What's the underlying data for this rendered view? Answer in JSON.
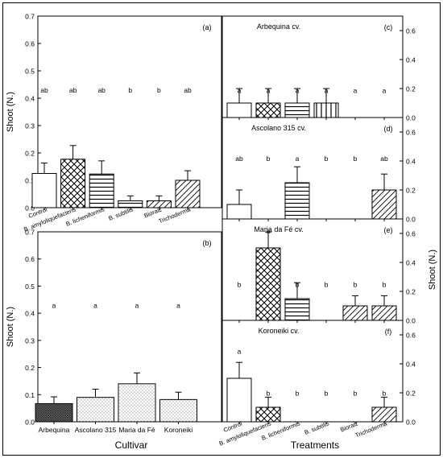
{
  "chart_data": [
    {
      "panel": "(a)",
      "type": "bar",
      "ylabel": "Shoot (N.)",
      "ylim": [
        0,
        0.7
      ],
      "yticks": [
        "0.0",
        "0.1",
        "0.2",
        "0.3",
        "0.4",
        "0.5",
        "0.6",
        "0.7"
      ],
      "categories": [
        "Control",
        "B. amyloliquefaciens",
        "B. licheniformis",
        "B. subtilis",
        "Bioraiz",
        "Trichoderma"
      ],
      "values": [
        0.125,
        0.177,
        0.123,
        0.025,
        0.025,
        0.1
      ],
      "errors": [
        0.038,
        0.05,
        0.048,
        0.018,
        0.018,
        0.035
      ],
      "letters": [
        "ab",
        "ab",
        "ab",
        "b",
        "b",
        "ab"
      ],
      "patterns": [
        "none",
        "cross",
        "hlines",
        "hlines",
        "diag",
        "diag"
      ]
    },
    {
      "panel": "(b)",
      "type": "bar",
      "ylabel": "Shoot (N.)",
      "xlabel": "Cultivar",
      "ylim": [
        0,
        0.7
      ],
      "yticks": [
        "0.0",
        "0.1",
        "0.2",
        "0.3",
        "0.4",
        "0.5",
        "0.6",
        "0.7"
      ],
      "categories": [
        "Arbequina",
        "Ascolano 315",
        "Maria da Fé",
        "Koroneiki"
      ],
      "values": [
        0.067,
        0.09,
        0.14,
        0.082
      ],
      "errors": [
        0.025,
        0.03,
        0.04,
        0.027
      ],
      "letters": [
        "a",
        "a",
        "a",
        "a"
      ],
      "patterns": [
        "dense",
        "dots",
        "dots",
        "dots"
      ]
    },
    {
      "panel": "(c)",
      "title": "Arbequina cv.",
      "type": "bar",
      "ylim": [
        0,
        0.7
      ],
      "yticks": [
        "0.0",
        "0.2",
        "0.4",
        "0.6"
      ],
      "categories": [
        "Control",
        "B. amyloliquefaciens",
        "B. licheniformis",
        "B. subtilis",
        "Bioraiz",
        "Trichoderma"
      ],
      "values": [
        0.1,
        0.1,
        0.1,
        0.1,
        0,
        0
      ],
      "errors": [
        0.1,
        0.1,
        0.1,
        0.1,
        0,
        0
      ],
      "letters": [
        "a",
        "a",
        "a",
        "a",
        "a",
        "a"
      ],
      "patterns": [
        "none",
        "cross",
        "hlines",
        "vlines",
        "diag",
        "diag"
      ]
    },
    {
      "panel": "(d)",
      "title": "Ascolano 315 cv.",
      "type": "bar",
      "ylim": [
        0,
        0.7
      ],
      "yticks": [
        "0.0",
        "0.2",
        "0.4",
        "0.6"
      ],
      "categories": [
        "Control",
        "B. amyloliquefaciens",
        "B. licheniformis",
        "B. subtilis",
        "Bioraiz",
        "Trichoderma"
      ],
      "values": [
        0.1,
        0,
        0.25,
        0,
        0,
        0.2
      ],
      "errors": [
        0.1,
        0,
        0.11,
        0,
        0,
        0.11
      ],
      "letters": [
        "ab",
        "b",
        "a",
        "b",
        "b",
        "ab"
      ],
      "patterns": [
        "none",
        "cross",
        "hlines",
        "vlines",
        "diag",
        "diag"
      ]
    },
    {
      "panel": "(e)",
      "title": "Maria da Fé cv.",
      "type": "bar",
      "ylabel": "Shoot (N.)",
      "ylim": [
        0,
        0.7
      ],
      "yticks": [
        "0.0",
        "0.2",
        "0.4",
        "0.6"
      ],
      "categories": [
        "Control",
        "B. amyloliquefaciens",
        "B. licheniformis",
        "B. subtilis",
        "Bioraiz",
        "Trichoderma"
      ],
      "values": [
        0,
        0.5,
        0.15,
        0,
        0.1,
        0.1
      ],
      "errors": [
        0,
        0.11,
        0.11,
        0,
        0.07,
        0.07
      ],
      "letters": [
        "b",
        "a",
        "b",
        "b",
        "b",
        "b"
      ],
      "patterns": [
        "none",
        "cross",
        "hlines",
        "vlines",
        "diag",
        "diag"
      ]
    },
    {
      "panel": "(f)",
      "title": "Koroneiki cv.",
      "type": "bar",
      "xlabel": "Treatments",
      "ylim": [
        0,
        0.7
      ],
      "yticks": [
        "0.0",
        "0.2",
        "0.4",
        "0.6"
      ],
      "categories": [
        "Control",
        "B. amyloliquefaciens",
        "B. licheniformis",
        "B. subtilis",
        "Bioraiz",
        "Trichoderma"
      ],
      "values": [
        0.3,
        0.1,
        0,
        0,
        0,
        0.1
      ],
      "errors": [
        0.11,
        0.07,
        0,
        0,
        0,
        0.07
      ],
      "letters": [
        "a",
        "b",
        "b",
        "b",
        "b",
        "b"
      ],
      "patterns": [
        "none",
        "cross",
        "hlines",
        "vlines",
        "diag",
        "diag"
      ]
    }
  ]
}
